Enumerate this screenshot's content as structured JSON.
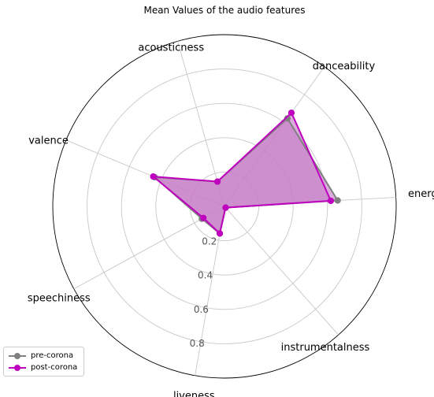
{
  "chart_data": {
    "type": "radar",
    "title": "Mean Values of the audio features",
    "axes": [
      "energy",
      "danceability",
      "acousticness",
      "valence",
      "speechiness",
      "liveness",
      "instrumentalness"
    ],
    "radial_range": [
      0,
      1
    ],
    "radial_ticks": [
      0.2,
      0.4,
      0.6,
      0.8
    ],
    "radial_tick_labels": [
      "0.2",
      "0.4",
      "0.6",
      "0.8"
    ],
    "grid": true,
    "legend_position": "lower-left",
    "series": [
      {
        "name": "pre-corona",
        "color": "#808080",
        "values": [
          0.66,
          0.63,
          0.15,
          0.44,
          0.15,
          0.16,
          0.01
        ]
      },
      {
        "name": "post-corona",
        "color": "#bf00bf",
        "values": [
          0.62,
          0.67,
          0.15,
          0.45,
          0.14,
          0.16,
          0.01
        ]
      }
    ],
    "fill_color": "#c77fc7"
  }
}
